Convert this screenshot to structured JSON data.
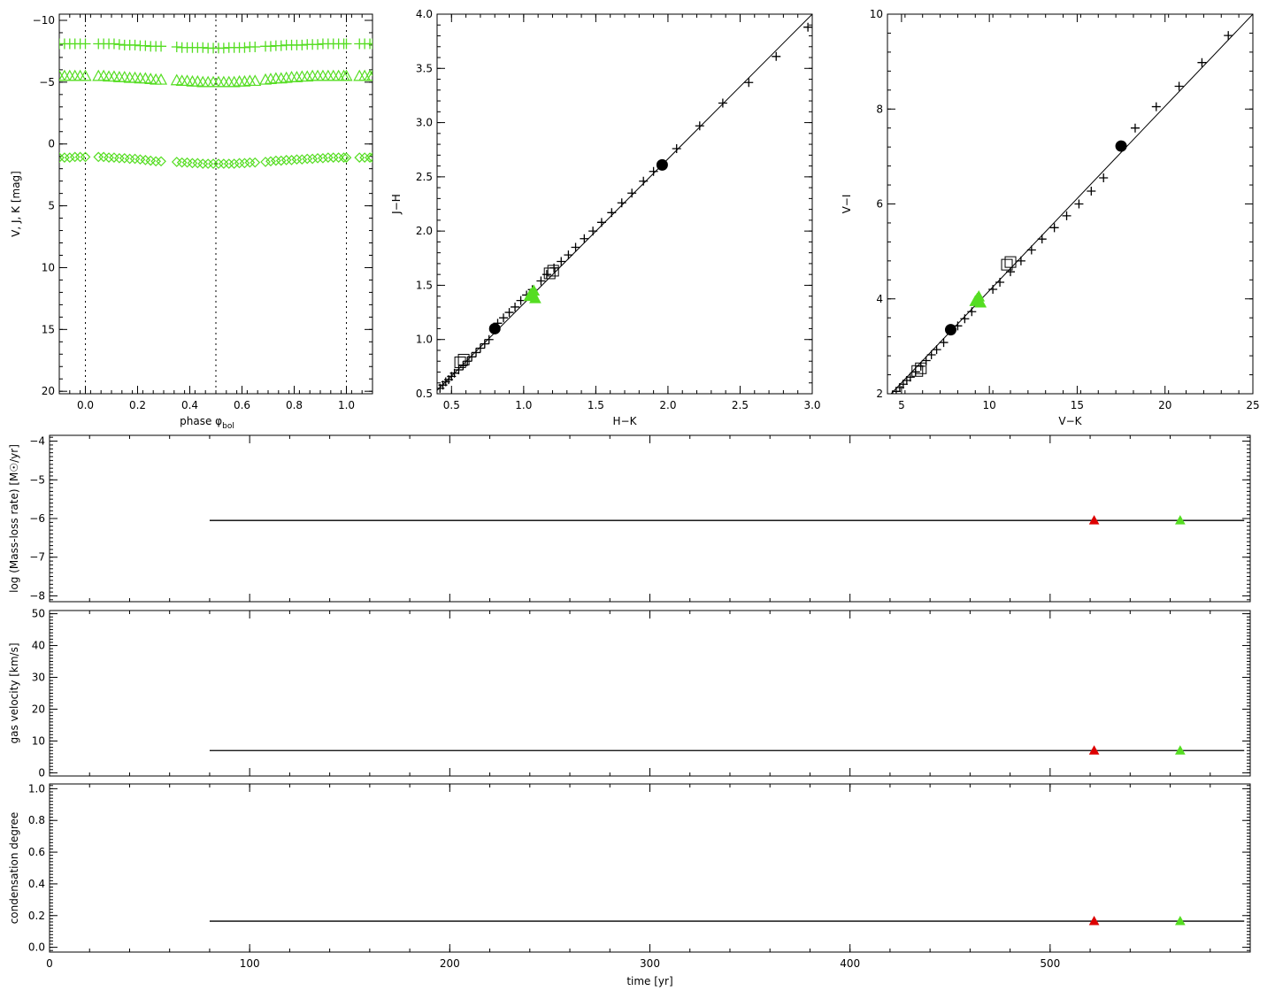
{
  "colors": {
    "green": "#55dd22",
    "red": "#dd0000",
    "black": "#000000"
  },
  "chart_data": [
    {
      "id": "lightcurve",
      "type": "scatter",
      "xlabel": "phase φ",
      "xlabel_sub": "bol",
      "ylabel": "V, J, K  [mag]",
      "xlim": [
        -0.1,
        1.1
      ],
      "ylim": [
        -10.5,
        20.2
      ],
      "y_inverted": true,
      "xticks": [
        0.0,
        0.2,
        0.4,
        0.6,
        0.8,
        1.0
      ],
      "xtick_labels": [
        "0.0",
        "0.2",
        "0.4",
        "0.6",
        "0.8",
        "1.0"
      ],
      "yticks": [
        -10,
        -5,
        0,
        5,
        10,
        15,
        20
      ],
      "ytick_labels": [
        "−10",
        "−5",
        "0",
        "5",
        "10",
        "15",
        "20"
      ],
      "vlines": [
        0.0,
        0.5,
        1.0
      ],
      "series": [
        {
          "marker": "plus",
          "color": "#55dd22",
          "x": [
            -0.1,
            -0.08,
            -0.06,
            -0.04,
            -0.02,
            0.0,
            0.05,
            0.07,
            0.09,
            0.11,
            0.13,
            0.15,
            0.17,
            0.19,
            0.21,
            0.23,
            0.25,
            0.27,
            0.29,
            0.35,
            0.37,
            0.39,
            0.41,
            0.43,
            0.45,
            0.47,
            0.49,
            0.51,
            0.53,
            0.55,
            0.57,
            0.59,
            0.61,
            0.63,
            0.65,
            0.69,
            0.71,
            0.73,
            0.75,
            0.77,
            0.79,
            0.81,
            0.83,
            0.85,
            0.87,
            0.89,
            0.91,
            0.93,
            0.95,
            0.97,
            0.99,
            1.0,
            1.05,
            1.07,
            1.09,
            1.1
          ],
          "y": [
            -8.1,
            -8.1,
            -8.1,
            -8.1,
            -8.1,
            -8.1,
            -8.1,
            -8.1,
            -8.1,
            -8.1,
            -8.05,
            -8.0,
            -8.0,
            -8.0,
            -7.95,
            -7.95,
            -7.9,
            -7.9,
            -7.9,
            -7.85,
            -7.8,
            -7.8,
            -7.8,
            -7.8,
            -7.8,
            -7.75,
            -7.75,
            -7.75,
            -7.75,
            -7.8,
            -7.8,
            -7.8,
            -7.8,
            -7.85,
            -7.85,
            -7.9,
            -7.9,
            -7.95,
            -7.95,
            -8.0,
            -8.0,
            -8.0,
            -8.0,
            -8.05,
            -8.05,
            -8.05,
            -8.1,
            -8.1,
            -8.1,
            -8.1,
            -8.1,
            -8.1,
            -8.1,
            -8.1,
            -8.1,
            -8.1
          ]
        },
        {
          "marker": "triangle",
          "color": "#55dd22",
          "x": [
            -0.1,
            -0.08,
            -0.06,
            -0.04,
            -0.02,
            0.0,
            0.05,
            0.07,
            0.09,
            0.11,
            0.13,
            0.15,
            0.17,
            0.19,
            0.21,
            0.23,
            0.25,
            0.27,
            0.29,
            0.35,
            0.37,
            0.39,
            0.41,
            0.43,
            0.45,
            0.47,
            0.49,
            0.51,
            0.53,
            0.55,
            0.57,
            0.59,
            0.61,
            0.63,
            0.65,
            0.69,
            0.71,
            0.73,
            0.75,
            0.77,
            0.79,
            0.81,
            0.83,
            0.85,
            0.87,
            0.89,
            0.91,
            0.93,
            0.95,
            0.97,
            0.99,
            1.0,
            1.05,
            1.07,
            1.09,
            1.1
          ],
          "y": [
            -5.5,
            -5.5,
            -5.5,
            -5.5,
            -5.5,
            -5.5,
            -5.5,
            -5.5,
            -5.45,
            -5.45,
            -5.4,
            -5.4,
            -5.35,
            -5.35,
            -5.3,
            -5.3,
            -5.25,
            -5.2,
            -5.2,
            -5.15,
            -5.1,
            -5.1,
            -5.05,
            -5.05,
            -5.0,
            -5.0,
            -5.0,
            -5.0,
            -5.0,
            -5.0,
            -5.0,
            -5.05,
            -5.05,
            -5.1,
            -5.1,
            -5.2,
            -5.25,
            -5.3,
            -5.3,
            -5.35,
            -5.4,
            -5.4,
            -5.45,
            -5.45,
            -5.5,
            -5.5,
            -5.5,
            -5.5,
            -5.5,
            -5.5,
            -5.5,
            -5.5,
            -5.5,
            -5.5,
            -5.5,
            -5.5
          ]
        },
        {
          "marker": "diamond",
          "color": "#55dd22",
          "x": [
            -0.1,
            -0.08,
            -0.06,
            -0.04,
            -0.02,
            0.0,
            0.05,
            0.07,
            0.09,
            0.11,
            0.13,
            0.15,
            0.17,
            0.19,
            0.21,
            0.23,
            0.25,
            0.27,
            0.29,
            0.35,
            0.37,
            0.39,
            0.41,
            0.43,
            0.45,
            0.47,
            0.49,
            0.51,
            0.53,
            0.55,
            0.57,
            0.59,
            0.61,
            0.63,
            0.65,
            0.69,
            0.71,
            0.73,
            0.75,
            0.77,
            0.79,
            0.81,
            0.83,
            0.85,
            0.87,
            0.89,
            0.91,
            0.93,
            0.95,
            0.97,
            0.99,
            1.0,
            1.05,
            1.07,
            1.09,
            1.1
          ],
          "y": [
            1.1,
            1.1,
            1.1,
            1.05,
            1.05,
            1.05,
            1.05,
            1.05,
            1.1,
            1.1,
            1.15,
            1.15,
            1.2,
            1.2,
            1.25,
            1.3,
            1.35,
            1.4,
            1.4,
            1.45,
            1.5,
            1.5,
            1.55,
            1.55,
            1.6,
            1.6,
            1.6,
            1.6,
            1.6,
            1.6,
            1.6,
            1.55,
            1.55,
            1.5,
            1.5,
            1.45,
            1.4,
            1.35,
            1.35,
            1.3,
            1.3,
            1.25,
            1.25,
            1.2,
            1.2,
            1.15,
            1.15,
            1.1,
            1.1,
            1.1,
            1.1,
            1.1,
            1.1,
            1.1,
            1.1,
            1.1
          ]
        }
      ]
    },
    {
      "id": "jh-hk",
      "type": "scatter",
      "xlabel": "H−K",
      "ylabel": "J−H",
      "xlim": [
        0.4,
        3.0
      ],
      "ylim": [
        0.5,
        4.0
      ],
      "xticks": [
        0.5,
        1.0,
        1.5,
        2.0,
        2.5,
        3.0
      ],
      "xtick_labels": [
        "0.5",
        "1.0",
        "1.5",
        "2.0",
        "2.5",
        "3.0"
      ],
      "yticks": [
        0.5,
        1.0,
        1.5,
        2.0,
        2.5,
        3.0,
        3.5,
        4.0
      ],
      "ytick_labels": [
        "0.5",
        "1.0",
        "1.5",
        "2.0",
        "2.5",
        "3.0",
        "3.5",
        "4.0"
      ],
      "line": {
        "x": [
          0.4,
          3.0
        ],
        "y": [
          0.53,
          4.0
        ]
      },
      "plus": {
        "x": [
          0.42,
          0.44,
          0.46,
          0.48,
          0.5,
          0.52,
          0.55,
          0.58,
          0.61,
          0.64,
          0.67,
          0.7,
          0.73,
          0.76,
          0.82,
          0.86,
          0.9,
          0.94,
          0.98,
          1.02,
          1.06,
          1.12,
          1.16,
          1.21,
          1.26,
          1.31,
          1.36,
          1.42,
          1.48,
          1.54,
          1.61,
          1.68,
          1.75,
          1.83,
          1.9,
          2.06,
          2.22,
          2.38,
          2.56,
          2.75,
          2.97
        ],
        "y": [
          0.55,
          0.58,
          0.61,
          0.63,
          0.66,
          0.69,
          0.72,
          0.76,
          0.8,
          0.84,
          0.88,
          0.92,
          0.96,
          1.0,
          1.15,
          1.2,
          1.25,
          1.3,
          1.36,
          1.41,
          1.46,
          1.54,
          1.6,
          1.66,
          1.72,
          1.78,
          1.85,
          1.93,
          2.0,
          2.08,
          2.17,
          2.26,
          2.35,
          2.46,
          2.55,
          2.76,
          2.97,
          3.18,
          3.37,
          3.61,
          3.88
        ]
      },
      "squares": {
        "x": [
          0.56,
          1.18
        ],
        "y": [
          0.79,
          1.61
        ]
      },
      "circles": {
        "x": [
          0.8,
          1.96
        ],
        "y": [
          1.1,
          2.61
        ]
      },
      "green": {
        "x": [
          1.04,
          1.06,
          1.08,
          1.07,
          1.05
        ],
        "y": [
          1.4,
          1.43,
          1.38,
          1.45,
          1.42
        ]
      }
    },
    {
      "id": "vi-vk",
      "type": "scatter",
      "xlabel": "V−K",
      "ylabel": "V−I",
      "xlim": [
        4.2,
        25.0
      ],
      "ylim": [
        2.0,
        10.0
      ],
      "xticks": [
        5,
        10,
        15,
        20,
        25
      ],
      "xtick_labels": [
        "5",
        "10",
        "15",
        "20",
        "25"
      ],
      "yticks": [
        2,
        4,
        6,
        8,
        10
      ],
      "ytick_labels": [
        "2",
        "4",
        "6",
        "8",
        "10"
      ],
      "line": {
        "x": [
          4.2,
          25.0
        ],
        "y": [
          1.92,
          10.0
        ]
      },
      "plus": {
        "x": [
          4.5,
          4.7,
          4.9,
          5.1,
          5.3,
          5.5,
          5.8,
          6.1,
          6.4,
          6.7,
          7.0,
          7.4,
          8.2,
          8.6,
          9.0,
          10.2,
          10.6,
          11.2,
          11.8,
          12.4,
          13.0,
          13.7,
          14.4,
          15.1,
          15.8,
          16.5,
          18.3,
          19.5,
          20.8,
          22.1,
          23.6
        ],
        "y": [
          1.98,
          2.05,
          2.13,
          2.2,
          2.28,
          2.35,
          2.46,
          2.58,
          2.7,
          2.82,
          2.93,
          3.08,
          3.43,
          3.58,
          3.73,
          4.2,
          4.35,
          4.57,
          4.8,
          5.03,
          5.26,
          5.5,
          5.75,
          6.0,
          6.27,
          6.55,
          7.6,
          8.05,
          8.48,
          8.98,
          9.55
        ]
      },
      "squares": {
        "x": [
          5.9,
          11.0
        ],
        "y": [
          2.48,
          4.72
        ]
      },
      "circles": {
        "x": [
          7.8,
          17.5
        ],
        "y": [
          3.35,
          7.22
        ]
      },
      "green": {
        "x": [
          9.2,
          9.4,
          9.3,
          9.5
        ],
        "y": [
          3.95,
          4.05,
          4.0,
          3.92
        ]
      }
    },
    {
      "id": "massloss",
      "type": "line",
      "ylabel": "log (Mass-loss rate) [M☉/yr]",
      "xlim": [
        0,
        600
      ],
      "ylim": [
        -8.15,
        -3.85
      ],
      "yticks": [
        -8,
        -7,
        -6,
        -5,
        -4
      ],
      "ytick_labels": [
        "−8",
        "−7",
        "−6",
        "−5",
        "−4"
      ],
      "line": {
        "x": [
          80,
          597
        ],
        "y": [
          -6.05,
          -6.05
        ]
      },
      "markers": [
        {
          "x": 522,
          "y": -6.05,
          "color": "#dd0000"
        },
        {
          "x": 565,
          "y": -6.05,
          "color": "#55dd22"
        }
      ]
    },
    {
      "id": "gasvel",
      "type": "line",
      "ylabel": "gas velocity [km/s]",
      "xlim": [
        0,
        600
      ],
      "ylim": [
        -1,
        51
      ],
      "yticks": [
        0,
        10,
        20,
        30,
        40,
        50
      ],
      "ytick_labels": [
        "0",
        "10",
        "20",
        "30",
        "40",
        "50"
      ],
      "line": {
        "x": [
          80,
          597
        ],
        "y": [
          7,
          7
        ]
      },
      "markers": [
        {
          "x": 522,
          "y": 7,
          "color": "#dd0000"
        },
        {
          "x": 565,
          "y": 7,
          "color": "#55dd22"
        }
      ]
    },
    {
      "id": "cond",
      "type": "line",
      "ylabel": "condensation degree",
      "xlabel": "time [yr]",
      "xlim": [
        0,
        600
      ],
      "ylim": [
        -0.03,
        1.03
      ],
      "yticks": [
        0.0,
        0.2,
        0.4,
        0.6,
        0.8,
        1.0
      ],
      "ytick_labels": [
        "0.0",
        "0.2",
        "0.4",
        "0.6",
        "0.8",
        "1.0"
      ],
      "xticks": [
        0,
        100,
        200,
        300,
        400,
        500
      ],
      "xtick_labels": [
        "0",
        "100",
        "200",
        "300",
        "400",
        "500"
      ],
      "line": {
        "x": [
          80,
          597
        ],
        "y": [
          0.165,
          0.165
        ]
      },
      "markers": [
        {
          "x": 522,
          "y": 0.165,
          "color": "#dd0000"
        },
        {
          "x": 565,
          "y": 0.165,
          "color": "#55dd22"
        }
      ]
    }
  ]
}
